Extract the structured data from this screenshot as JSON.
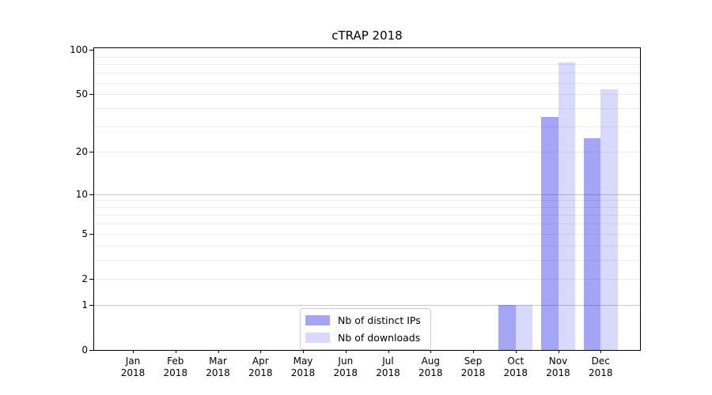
{
  "chart_data": {
    "type": "bar",
    "title": "cTRAP 2018",
    "categories": [
      "Jan",
      "Feb",
      "Mar",
      "Apr",
      "May",
      "Jun",
      "Jul",
      "Aug",
      "Sep",
      "Oct",
      "Nov",
      "Dec"
    ],
    "year_label": "2018",
    "series": [
      {
        "name": "Nb of distinct IPs",
        "values": [
          0,
          0,
          0,
          0,
          0,
          0,
          0,
          0,
          0,
          1,
          35,
          25
        ],
        "color": "rgba(30,30,230,0.40)"
      },
      {
        "name": "Nb of downloads",
        "values": [
          0,
          0,
          0,
          0,
          0,
          0,
          0,
          0,
          0,
          1,
          82,
          54
        ],
        "color": "rgba(30,30,230,0.17)"
      }
    ],
    "xlabel": "",
    "ylabel": "",
    "yscale": "log1p",
    "ylim": [
      0,
      100
    ],
    "y_ticks": [
      0,
      1,
      2,
      5,
      10,
      20,
      50,
      100
    ],
    "grid_minor_values": [
      2,
      3,
      4,
      5,
      6,
      7,
      8,
      9,
      20,
      30,
      40,
      50,
      60,
      70,
      80,
      90
    ],
    "grid_major_values": [
      1,
      10
    ],
    "grid": "on",
    "legend_position": "lower center",
    "colors": {
      "grid_minor": "#ececec",
      "grid_major": "#c9c9c9",
      "frame": "#000000",
      "text": "#000000",
      "legend_border": "#cccccc",
      "background": "#ffffff"
    }
  }
}
